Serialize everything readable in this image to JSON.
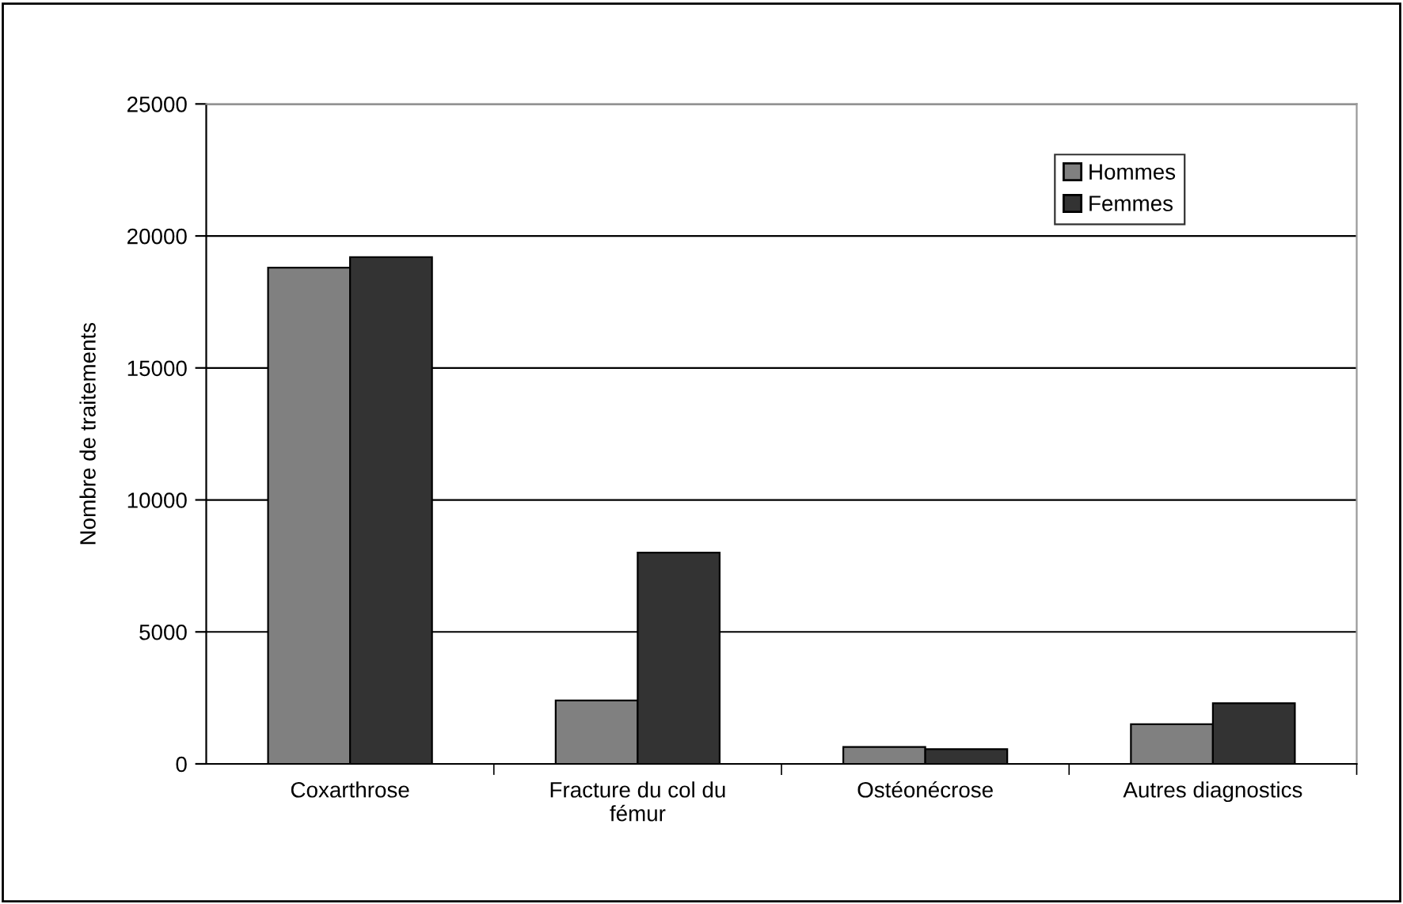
{
  "chart_data": {
    "type": "bar",
    "ylabel": "Nombre de traitements",
    "categories": [
      "Coxarthrose",
      "Fracture du col du\nfémur",
      "Ostéonécrose",
      "Autres diagnostics"
    ],
    "series": [
      {
        "name": "Hommes",
        "color": "#808080",
        "values": [
          18800,
          2400,
          640,
          1500
        ]
      },
      {
        "name": "Femmes",
        "color": "#333333",
        "values": [
          19200,
          8000,
          560,
          2300
        ]
      }
    ],
    "ylim": [
      0,
      25000
    ],
    "yticks": [
      0,
      5000,
      10000,
      15000,
      20000,
      25000
    ],
    "grid": "y",
    "legend": "top right"
  }
}
